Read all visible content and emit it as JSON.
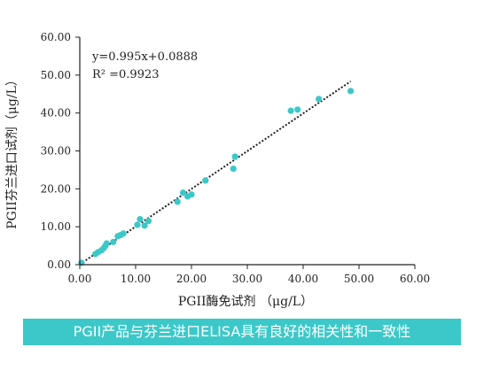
{
  "chart_data": {
    "type": "scatter",
    "xlabel": "PGII酶免试剂 （μg/L）",
    "ylabel": "PGII芬兰进口试剂（μg/L）",
    "xlim": [
      0,
      60
    ],
    "ylim": [
      0,
      60
    ],
    "x_ticks": [
      "0.00",
      "10.00",
      "20.00",
      "30.00",
      "40.00",
      "50.00",
      "60.00"
    ],
    "y_ticks": [
      "0.00",
      "10.00",
      "20.00",
      "30.00",
      "40.00",
      "50.00",
      "60.00"
    ],
    "annotations": [
      "y=0.995x+0.0888",
      "R² =0.9923"
    ],
    "trendline": {
      "slope": 0.995,
      "intercept": 0.0888,
      "x_range": [
        0,
        48.5
      ]
    },
    "grid": false,
    "marker_color": "#3cc8c8",
    "points": [
      {
        "x": 0.3,
        "y": 0.5
      },
      {
        "x": 2.8,
        "y": 2.8
      },
      {
        "x": 3.3,
        "y": 3.3
      },
      {
        "x": 3.9,
        "y": 3.8
      },
      {
        "x": 4.3,
        "y": 4.4
      },
      {
        "x": 4.6,
        "y": 5.0
      },
      {
        "x": 4.8,
        "y": 5.6
      },
      {
        "x": 6.0,
        "y": 6.0
      },
      {
        "x": 6.8,
        "y": 7.5
      },
      {
        "x": 7.3,
        "y": 7.8
      },
      {
        "x": 7.8,
        "y": 8.2
      },
      {
        "x": 10.3,
        "y": 10.5
      },
      {
        "x": 10.8,
        "y": 12.0
      },
      {
        "x": 11.6,
        "y": 10.3
      },
      {
        "x": 12.3,
        "y": 11.5
      },
      {
        "x": 17.5,
        "y": 16.6
      },
      {
        "x": 18.5,
        "y": 19.0
      },
      {
        "x": 19.3,
        "y": 18.0
      },
      {
        "x": 20.0,
        "y": 18.5
      },
      {
        "x": 22.5,
        "y": 22.2
      },
      {
        "x": 27.5,
        "y": 25.3
      },
      {
        "x": 27.8,
        "y": 28.5
      },
      {
        "x": 37.8,
        "y": 40.6
      },
      {
        "x": 39.0,
        "y": 40.9
      },
      {
        "x": 42.8,
        "y": 43.7
      },
      {
        "x": 48.5,
        "y": 45.8
      }
    ]
  },
  "caption": "PGII产品与芬兰进口ELISA具有良好的相关性和一致性"
}
